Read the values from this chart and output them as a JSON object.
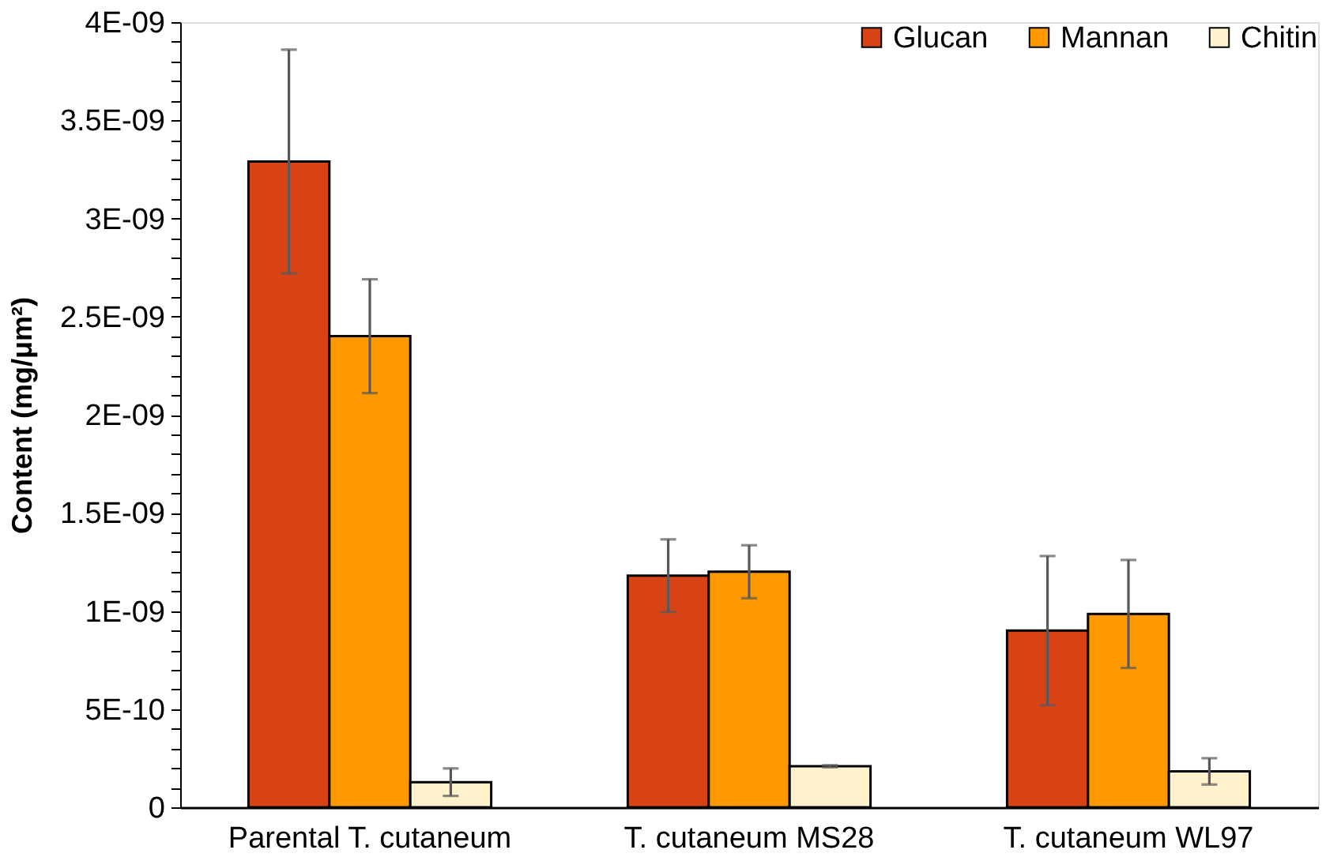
{
  "chart_data": {
    "type": "bar",
    "ylabel": "Content (mg/μm²)",
    "categories": [
      "Parental T. cutaneum",
      "T. cutaneum MS28",
      "T. cutaneum WL97"
    ],
    "series": [
      {
        "name": "Glucan",
        "color": "#d84315",
        "values": [
          3.29e-09,
          1.18e-09,
          9e-10
        ],
        "errors": [
          5.7e-10,
          1.85e-10,
          3.8e-10
        ]
      },
      {
        "name": "Mannan",
        "color": "#ff9900",
        "values": [
          2.4e-09,
          1.2e-09,
          9.85e-10
        ],
        "errors": [
          2.9e-10,
          1.35e-10,
          2.75e-10
        ]
      },
      {
        "name": "Chitin",
        "color": "#fff2cc",
        "values": [
          1.28e-10,
          2.09e-10,
          1.83e-10
        ],
        "errors": [
          7e-11,
          5e-12,
          6.7e-11
        ]
      }
    ],
    "ylim": [
      0,
      4e-09
    ],
    "yticks": [
      {
        "value": 0,
        "label": "0"
      },
      {
        "value": 1e-10,
        "label": null
      },
      {
        "value": 2e-10,
        "label": null
      },
      {
        "value": 3e-10,
        "label": null
      },
      {
        "value": 4e-10,
        "label": null
      },
      {
        "value": 5e-10,
        "label": "5E-10"
      },
      {
        "value": 6e-10,
        "label": null
      },
      {
        "value": 7e-10,
        "label": null
      },
      {
        "value": 8e-10,
        "label": null
      },
      {
        "value": 9e-10,
        "label": null
      },
      {
        "value": 1e-09,
        "label": "1E-09"
      },
      {
        "value": 1.1e-09,
        "label": null
      },
      {
        "value": 1.2e-09,
        "label": null
      },
      {
        "value": 1.3e-09,
        "label": null
      },
      {
        "value": 1.4e-09,
        "label": null
      },
      {
        "value": 1.5e-09,
        "label": "1.5E-09"
      },
      {
        "value": 1.6e-09,
        "label": null
      },
      {
        "value": 1.7e-09,
        "label": null
      },
      {
        "value": 1.8e-09,
        "label": null
      },
      {
        "value": 1.9e-09,
        "label": null
      },
      {
        "value": 2e-09,
        "label": "2E-09"
      },
      {
        "value": 2.1e-09,
        "label": null
      },
      {
        "value": 2.2e-09,
        "label": null
      },
      {
        "value": 2.3e-09,
        "label": null
      },
      {
        "value": 2.4e-09,
        "label": null
      },
      {
        "value": 2.5e-09,
        "label": "2.5E-09"
      },
      {
        "value": 2.6e-09,
        "label": null
      },
      {
        "value": 2.7e-09,
        "label": null
      },
      {
        "value": 2.8e-09,
        "label": null
      },
      {
        "value": 2.9e-09,
        "label": null
      },
      {
        "value": 3e-09,
        "label": "3E-09"
      },
      {
        "value": 3.1e-09,
        "label": null
      },
      {
        "value": 3.2e-09,
        "label": null
      },
      {
        "value": 3.3e-09,
        "label": null
      },
      {
        "value": 3.4e-09,
        "label": null
      },
      {
        "value": 3.5e-09,
        "label": "3.5E-09"
      },
      {
        "value": 3.6e-09,
        "label": null
      },
      {
        "value": 3.7e-09,
        "label": null
      },
      {
        "value": 3.8e-09,
        "label": null
      },
      {
        "value": 3.9e-09,
        "label": null
      },
      {
        "value": 4e-09,
        "label": "4E-09"
      }
    ],
    "grid": false,
    "legend": "top right"
  }
}
